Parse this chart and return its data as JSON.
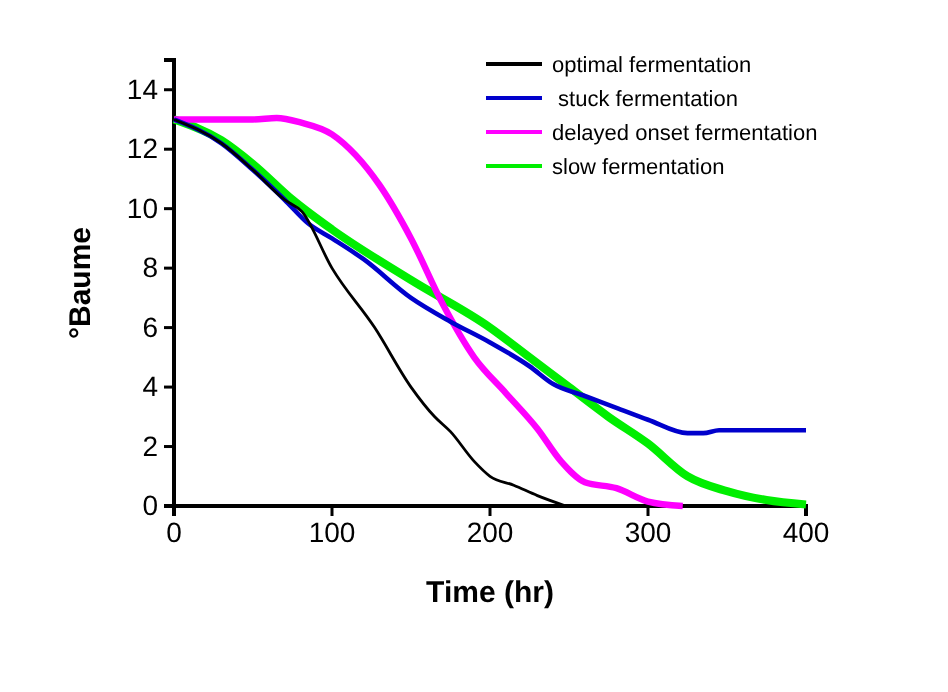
{
  "chart_data": {
    "type": "line",
    "xlabel": "Time (hr)",
    "ylabel": "°Baume",
    "xlim": [
      0,
      400
    ],
    "xticks": [
      0,
      100,
      200,
      300,
      400
    ],
    "ylim": [
      0,
      15
    ],
    "yticks": [
      0,
      2,
      4,
      6,
      8,
      10,
      12,
      14
    ],
    "legend": "top right",
    "grid": false,
    "marker": "none",
    "line_style": "solid",
    "series": [
      {
        "name": "optimal fermentation",
        "color": "#000000",
        "x": [
          0,
          30,
          50,
          70,
          81,
          100,
          127,
          150,
          165,
          175,
          190,
          200,
          215,
          230,
          248
        ],
        "values": [
          13,
          12.2,
          11.3,
          10.3,
          9.9,
          8,
          6,
          4,
          3,
          2.5,
          1.5,
          1,
          0.7,
          0.35,
          0
        ]
      },
      {
        "name": " stuck fermentation",
        "color": "#0000cc",
        "x": [
          0,
          30,
          50,
          70,
          85,
          100,
          120,
          150,
          175,
          200,
          225,
          240,
          260,
          280,
          300,
          325,
          335,
          345,
          400
        ],
        "values": [
          13,
          12.2,
          11.3,
          10.3,
          9.5,
          9,
          8.3,
          7,
          6.2,
          5.5,
          4.7,
          4.1,
          3.7,
          3.3,
          2.9,
          2.45,
          2.45,
          2.55,
          2.55
        ]
      },
      {
        "name": "delayed onset fermentation",
        "color": "#ff00ff",
        "x": [
          0,
          30,
          50,
          65,
          80,
          100,
          115,
          130,
          150,
          170,
          190,
          210,
          230,
          245,
          260,
          280,
          300,
          322
        ],
        "values": [
          13,
          13,
          13,
          13.05,
          12.9,
          12.5,
          11.8,
          10.8,
          9,
          6.8,
          5,
          3.8,
          2.6,
          1.5,
          0.8,
          0.6,
          0.15,
          0
        ]
      },
      {
        "name": "slow fermentation",
        "color": "#00ee00",
        "x": [
          0,
          30,
          50,
          75,
          100,
          150,
          200,
          225,
          250,
          275,
          300,
          325,
          350,
          375,
          400
        ],
        "values": [
          13,
          12.3,
          11.5,
          10.3,
          9.3,
          7.6,
          6,
          5,
          4,
          3,
          2.1,
          1,
          0.5,
          0.2,
          0.05
        ]
      }
    ]
  }
}
